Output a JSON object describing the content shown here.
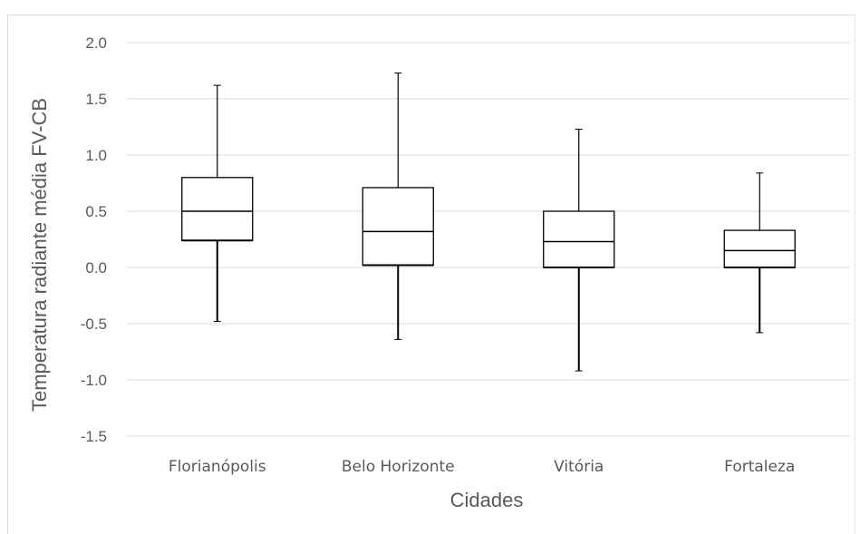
{
  "chart_data": {
    "type": "box",
    "ylabel": "Temperatura radiante média FV-CB",
    "xlabel": "Cidades",
    "ylim": [
      -1.5,
      2.0
    ],
    "yticks": [
      2.0,
      1.5,
      1.0,
      0.5,
      0.0,
      -0.5,
      -1.0,
      -1.5
    ],
    "ytick_labels": [
      "2.0",
      "1.5",
      "1.0",
      "0.5",
      "0.0",
      "-0.5",
      "-1.0",
      "-1.5"
    ],
    "grid": true,
    "categories": [
      "Florianópolis",
      "Belo Horizonte",
      "Vitória",
      "Fortaleza"
    ],
    "boxes": [
      {
        "min": -0.48,
        "q1": 0.24,
        "median": 0.5,
        "q3": 0.8,
        "max": 1.62
      },
      {
        "min": -0.64,
        "q1": 0.02,
        "median": 0.32,
        "q3": 0.71,
        "max": 1.73
      },
      {
        "min": -0.92,
        "q1": 0.0,
        "median": 0.23,
        "q3": 0.5,
        "max": 1.23
      },
      {
        "min": -0.58,
        "q1": 0.0,
        "median": 0.15,
        "q3": 0.33,
        "max": 0.84
      }
    ],
    "colors": {
      "box": "#000000",
      "grid": "#d9d9d9",
      "text": "#595959"
    }
  }
}
